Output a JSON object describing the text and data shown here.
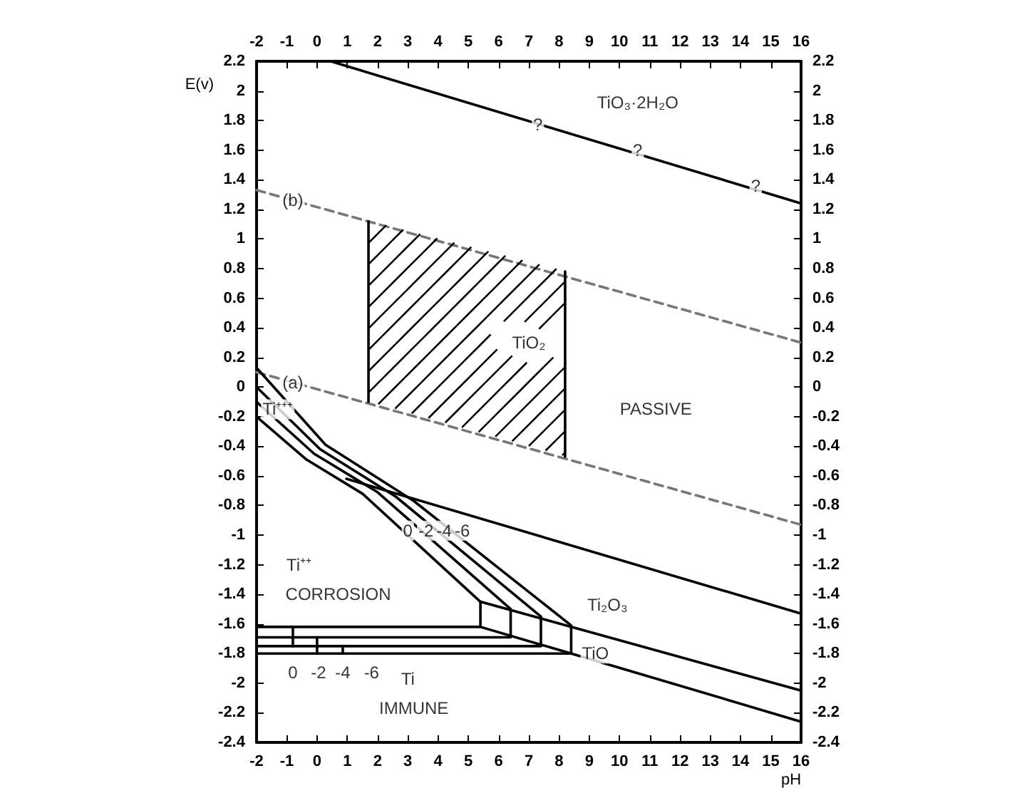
{
  "chart_data": {
    "type": "line",
    "xlabel": "pH",
    "ylabel": "E(v)",
    "xlim": [
      -2,
      16
    ],
    "xticks": [
      -2,
      -1,
      0,
      1,
      2,
      3,
      4,
      5,
      6,
      7,
      8,
      9,
      10,
      11,
      12,
      13,
      14,
      15,
      16
    ],
    "x2lim": [
      -2,
      16
    ],
    "x2ticks": [
      -2,
      -1,
      0,
      1,
      2,
      3,
      4,
      5,
      6,
      7,
      8,
      9,
      10,
      11,
      12,
      13,
      14,
      15,
      16
    ],
    "ylim": [
      -2.4,
      2.2
    ],
    "yticks": [
      -2.4,
      -2.2,
      -2,
      -1.8,
      -1.6,
      -1.4,
      -1.2,
      -1,
      -0.8,
      -0.6,
      -0.4,
      -0.2,
      0,
      0.2,
      0.4,
      0.6,
      0.8,
      1,
      1.2,
      1.4,
      1.6,
      1.8,
      2,
      2.2
    ],
    "y2lim": [
      -2.4,
      2.2
    ],
    "y2ticks": [
      -2.4,
      -2.2,
      -2,
      -1.8,
      -1.6,
      -1.4,
      -1.2,
      -1,
      -0.8,
      -0.6,
      -0.4,
      -0.2,
      0,
      0.2,
      0.4,
      0.6,
      0.8,
      1,
      1.2,
      1.4,
      1.6,
      1.8,
      2,
      2.2
    ],
    "grid": false,
    "marker": "none",
    "line_style": "solid",
    "series": [
      {
        "color": "#000000",
        "x": [
          0.45,
          16
        ],
        "values": [
          2.2,
          1.24
        ]
      },
      {
        "color": "#777777",
        "line_style": "dashed",
        "x": [
          -2,
          16
        ],
        "values": [
          1.33,
          0.3
        ]
      },
      {
        "color": "#777777",
        "line_style": "dashed",
        "x": [
          -2,
          16
        ],
        "values": [
          0.1,
          -0.93
        ]
      },
      {
        "color": "#000000",
        "x": [
          1.7,
          1.7
        ],
        "values": [
          -0.1,
          1.12
        ]
      },
      {
        "color": "#000000",
        "x": [
          8.2,
          8.2
        ],
        "values": [
          -0.47,
          0.78
        ]
      },
      {
        "color": "#000000",
        "x": [
          -2,
          -0.35,
          1.5,
          5.4,
          5.4,
          -2
        ],
        "values": [
          -0.2,
          -0.49,
          -0.72,
          -1.45,
          -1.62,
          -1.62
        ]
      },
      {
        "color": "#000000",
        "x": [
          -2,
          -0.1,
          2,
          6.4,
          6.4,
          -2
        ],
        "values": [
          -0.1,
          -0.45,
          -0.71,
          -1.5,
          -1.69,
          -1.69
        ]
      },
      {
        "color": "#000000",
        "x": [
          -2,
          0.1,
          2.6,
          7.4,
          7.4,
          -2
        ],
        "values": [
          0,
          -0.42,
          -0.74,
          -1.55,
          -1.75,
          -1.75
        ]
      },
      {
        "color": "#000000",
        "x": [
          -2,
          0.28,
          3.2,
          8.4,
          8.4,
          -2
        ],
        "values": [
          0.13,
          -0.39,
          -0.77,
          -1.61,
          -1.8,
          -1.8
        ]
      },
      {
        "color": "#000000",
        "x": [
          0.97,
          16
        ],
        "values": [
          -0.62,
          -1.53
        ]
      },
      {
        "color": "#000000",
        "x": [
          5.4,
          16
        ],
        "values": [
          -1.45,
          -2.05
        ]
      },
      {
        "color": "#000000",
        "x": [
          5.4,
          8.4,
          16
        ],
        "values": [
          -1.62,
          -1.8,
          -2.26
        ]
      },
      {
        "color": "#000000",
        "x": [
          -0.8,
          -0.8
        ],
        "values": [
          -1.62,
          -1.75
        ]
      },
      {
        "color": "#000000",
        "x": [
          0,
          0
        ],
        "values": [
          -1.69,
          -1.8
        ]
      },
      {
        "color": "#000000",
        "x": [
          0.85,
          0.85
        ],
        "values": [
          -1.75,
          -1.8
        ]
      }
    ],
    "annotations": [
      "TiO₃·2H₂O",
      {
        "text": "?",
        "x": 7.3,
        "y": 1.77
      },
      {
        "text": "?",
        "x": 10.6,
        "y": 1.6
      },
      {
        "text": "?",
        "x": 14.5,
        "y": 1.36
      },
      {
        "text": "(b)",
        "x": -0.8,
        "y": 1.26
      },
      {
        "text": "(a)",
        "x": -0.8,
        "y": 0.03
      },
      "TiO₂",
      "PASSIVE",
      {
        "text": "Ti⁺⁺⁺",
        "x": -1.3,
        "y": -0.15
      },
      "Ti⁺⁺",
      "CORROSION",
      "Ti₂O₃",
      {
        "text": "TiO",
        "x": 9.2,
        "y": -1.8
      },
      {
        "text": "0",
        "x": 3,
        "y": -0.97
      },
      {
        "text": "-2",
        "x": 3.6,
        "y": -0.97
      },
      {
        "text": "-4",
        "x": 4.2,
        "y": -0.97
      },
      {
        "text": "-6",
        "x": 4.8,
        "y": -0.97
      },
      "0",
      "-2",
      "-4",
      "-6",
      "Ti",
      "IMMUNE"
    ]
  }
}
